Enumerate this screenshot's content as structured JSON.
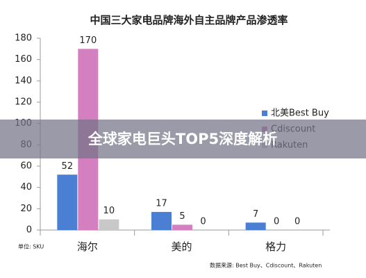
{
  "chart_data": {
    "type": "bar",
    "title": "中国三大家电品牌海外自主品牌产品渗透率",
    "categories": [
      "海尔",
      "美的",
      "格力"
    ],
    "series": [
      {
        "name": "北美Best Buy",
        "color": "#4a7fd4",
        "values": [
          52,
          17,
          7
        ]
      },
      {
        "name": "Cdiscount",
        "color": "#d47fc0",
        "values": [
          170,
          5,
          0
        ]
      },
      {
        "name": "Rakuten",
        "color": "#c8c8c8",
        "values": [
          10,
          0,
          0
        ]
      }
    ],
    "ylim": [
      0,
      180
    ],
    "yticks": [
      0,
      20,
      40,
      60,
      80,
      100,
      120,
      140,
      160,
      180
    ],
    "unit_note": "单位: SKU",
    "source": "数据来源: Best Buy、Cdiscount、Rakuten"
  },
  "banner": {
    "title": "全球家电巨头TOP5深度解析"
  }
}
